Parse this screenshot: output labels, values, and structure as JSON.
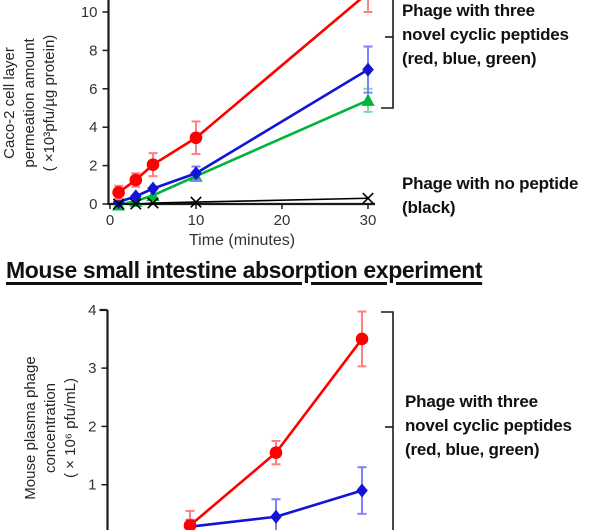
{
  "page": {
    "background": "#ffffff"
  },
  "heading": {
    "text": "Mouse small intestine absorption experiment"
  },
  "annotations": {
    "top_group": "Phage with three\nnovel cyclic peptides\n(red, blue, green)",
    "no_peptide": "Phage with no peptide\n(black)",
    "bottom_group": "Phage with three\nnovel cyclic peptides\n(red, blue, green)"
  },
  "colors": {
    "red": "#ff0000",
    "blue": "#1414d6",
    "green": "#00b43c",
    "black": "#000000",
    "axis": "#1a1a1a",
    "tick_text": "#333333"
  },
  "chart_data": [
    {
      "id": "caco2",
      "type": "line",
      "title": "",
      "ylabel": "Caco-2 cell layer\npermeation amount\n( ×10³pfu/µg protein)",
      "xlabel": "Time (minutes)",
      "x": [
        1,
        3,
        5,
        10,
        30
      ],
      "xticks": [
        0,
        10,
        20,
        30
      ],
      "yticks": [
        0,
        2,
        4,
        6,
        8,
        10
      ],
      "xlim": [
        0,
        31
      ],
      "ylim_visible": [
        0,
        10.6
      ],
      "grid": false,
      "legend_position": "right-bracket",
      "series": [
        {
          "name": "green-peptide-phage",
          "marker": "triangle",
          "color": "#00b43c",
          "error_color": "#7fdb9b",
          "values": [
            -0.05,
            0.15,
            0.45,
            1.45,
            5.4
          ],
          "errors": [
            0,
            0,
            0,
            0.2,
            0.6
          ]
        },
        {
          "name": "blue-peptide-phage",
          "marker": "diamond",
          "color": "#1414d6",
          "error_color": "#8080ff",
          "values": [
            0.1,
            0.4,
            0.8,
            1.6,
            7.0
          ],
          "errors": [
            0,
            0,
            0,
            0.35,
            1.2
          ]
        },
        {
          "name": "red-peptide-phage",
          "marker": "circle",
          "color": "#ff0000",
          "error_color": "#ff8080",
          "values": [
            0.6,
            1.25,
            2.05,
            3.45,
            11.0
          ],
          "errors": [
            0.35,
            0.35,
            0.6,
            0.85,
            1.0
          ]
        },
        {
          "name": "no-peptide-phage",
          "marker": "x",
          "color": "#000000",
          "error_color": "#000000",
          "values": [
            0.0,
            0.0,
            0.05,
            0.1,
            0.3
          ],
          "errors": [
            0,
            0,
            0,
            0,
            0
          ]
        }
      ]
    },
    {
      "id": "plasma",
      "type": "line",
      "title": "",
      "ylabel": "Mouse plasma phage\nconcentration\n( × 10⁶ pfu/mL)",
      "xlabel": "",
      "x": [
        10,
        20,
        30
      ],
      "xticks": [],
      "yticks": [
        1,
        2,
        3,
        4
      ],
      "xlim": [
        0,
        31
      ],
      "ylim_visible": [
        0.2,
        4
      ],
      "grid": false,
      "legend_position": "right-bracket",
      "series": [
        {
          "name": "blue-peptide-phage",
          "marker": "diamond",
          "color": "#1414d6",
          "error_color": "#8080ff",
          "values": [
            0.28,
            0.45,
            0.9
          ],
          "errors": [
            0.12,
            0.3,
            0.4
          ]
        },
        {
          "name": "red-peptide-phage",
          "marker": "circle",
          "color": "#ff0000",
          "error_color": "#ff8080",
          "values": [
            0.3,
            1.55,
            3.5
          ],
          "errors": [
            0.25,
            0.2,
            0.47
          ]
        }
      ]
    }
  ]
}
